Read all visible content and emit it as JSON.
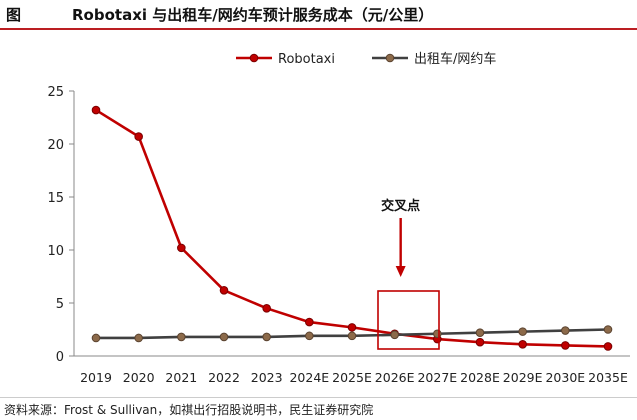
{
  "header": {
    "label": "图",
    "title": "Robotaxi 与出租车/网约车预计服务成本（元/公里）"
  },
  "source": "资料来源：Frost & Sullivan，如祺出行招股说明书，民生证券研究院",
  "chart_data": {
    "type": "line",
    "categories": [
      "2019",
      "2020",
      "2021",
      "2022",
      "2023",
      "2024E",
      "2025E",
      "2026E",
      "2027E",
      "2028E",
      "2029E",
      "2030E",
      "2035E"
    ],
    "ylim": [
      0,
      25
    ],
    "yticks": [
      "0",
      "5",
      "10",
      "15",
      "20",
      "25"
    ],
    "series": [
      {
        "name": "Robotaxi",
        "color": "#c00000",
        "values": [
          23.2,
          20.7,
          10.2,
          6.2,
          4.5,
          3.2,
          2.7,
          2.1,
          1.6,
          1.3,
          1.1,
          1.0,
          0.9
        ]
      },
      {
        "name": "出租车/网约车",
        "color": "#404040",
        "values": [
          1.7,
          1.7,
          1.8,
          1.8,
          1.8,
          1.9,
          1.9,
          2.0,
          2.1,
          2.2,
          2.3,
          2.4,
          2.5
        ]
      }
    ],
    "annotation": {
      "text": "交叉点",
      "category_index": 7,
      "box_color": "#c00000"
    },
    "legend_position": "top"
  }
}
